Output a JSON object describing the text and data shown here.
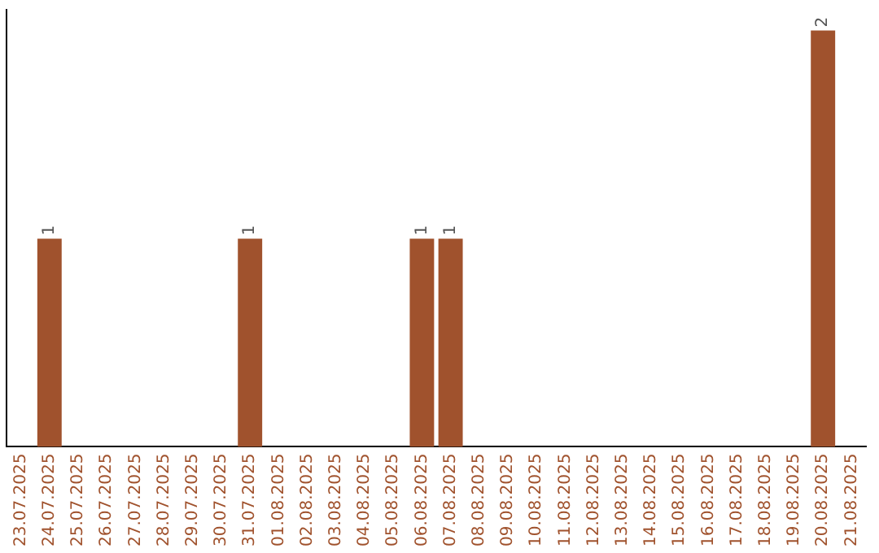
{
  "chart_data": {
    "type": "bar",
    "categories": [
      "23.07.2025",
      "24.07.2025",
      "25.07.2025",
      "26.07.2025",
      "27.07.2025",
      "28.07.2025",
      "29.07.2025",
      "30.07.2025",
      "31.07.2025",
      "01.08.2025",
      "02.08.2025",
      "03.08.2025",
      "04.08.2025",
      "05.08.2025",
      "06.08.2025",
      "07.08.2025",
      "08.08.2025",
      "09.08.2025",
      "10.08.2025",
      "11.08.2025",
      "12.08.2025",
      "13.08.2025",
      "14.08.2025",
      "15.08.2025",
      "16.08.2025",
      "17.08.2025",
      "18.08.2025",
      "19.08.2025",
      "20.08.2025",
      "21.08.2025"
    ],
    "values": [
      0,
      1,
      0,
      0,
      0,
      0,
      0,
      0,
      1,
      0,
      0,
      0,
      0,
      0,
      1,
      1,
      0,
      0,
      0,
      0,
      0,
      0,
      0,
      0,
      0,
      0,
      0,
      0,
      2,
      0
    ],
    "value_labels": [
      null,
      "1",
      null,
      null,
      null,
      null,
      null,
      null,
      "1",
      null,
      null,
      null,
      null,
      null,
      "1",
      "1",
      null,
      null,
      null,
      null,
      null,
      null,
      null,
      null,
      null,
      null,
      null,
      null,
      "2",
      null
    ],
    "color": "#a0522d",
    "ylim": [
      0,
      2.1
    ],
    "grid": false,
    "legend": false,
    "tick_labels": "x"
  }
}
